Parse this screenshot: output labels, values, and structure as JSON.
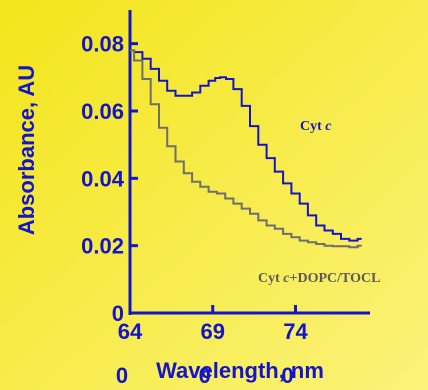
{
  "chart_data": {
    "type": "line",
    "ylabel": "Absorbance, AU",
    "xlabel": "Wavelength, nm",
    "xlim": [
      64,
      78.5
    ],
    "ylim": [
      0,
      0.09
    ],
    "y_ticks": [
      {
        "value": 0,
        "label": "0"
      },
      {
        "value": 0.02,
        "label": "0.02"
      },
      {
        "value": 0.04,
        "label": "0.04"
      },
      {
        "value": 0.06,
        "label": "0.06"
      },
      {
        "value": 0.08,
        "label": "0.08"
      }
    ],
    "x_ticks": [
      {
        "value": 64,
        "label": "64"
      },
      {
        "value": 69,
        "label": "69"
      },
      {
        "value": 74,
        "label": "74"
      }
    ],
    "x_subticks": [
      "0",
      "0",
      "0"
    ],
    "series": [
      {
        "name_main": "Cyt ",
        "name_italic": "c",
        "name_rest": "",
        "color": "#1414c8",
        "x": [
          64.0,
          64.5,
          65.0,
          65.5,
          66.0,
          66.5,
          67.0,
          67.5,
          68.0,
          68.5,
          69.0,
          69.3,
          69.6,
          70.0,
          70.5,
          71.0,
          71.5,
          72.0,
          72.5,
          73.0,
          73.5,
          74.0,
          74.5,
          75.0,
          75.5,
          76.0,
          76.5,
          77.0,
          77.5,
          78.0
        ],
        "y": [
          0.078,
          0.0775,
          0.0755,
          0.0725,
          0.069,
          0.066,
          0.0645,
          0.0645,
          0.0655,
          0.0675,
          0.069,
          0.0698,
          0.07,
          0.0695,
          0.0665,
          0.0615,
          0.0555,
          0.05,
          0.046,
          0.042,
          0.0385,
          0.0355,
          0.0325,
          0.029,
          0.026,
          0.0245,
          0.0235,
          0.022,
          0.0215,
          0.022
        ]
      },
      {
        "name_main": "Cyt ",
        "name_italic": "c",
        "name_rest": "+DOPC/TOCL",
        "color": "#6e6e6e",
        "x": [
          64.0,
          64.5,
          65.0,
          65.5,
          66.0,
          66.5,
          67.0,
          67.5,
          68.0,
          68.5,
          69.0,
          69.5,
          70.0,
          70.5,
          71.0,
          71.5,
          72.0,
          72.5,
          73.0,
          73.5,
          74.0,
          74.5,
          75.0,
          75.5,
          76.0,
          76.5,
          77.0,
          77.5,
          78.0
        ],
        "y": [
          0.078,
          0.075,
          0.0695,
          0.062,
          0.055,
          0.0495,
          0.045,
          0.0415,
          0.039,
          0.0375,
          0.036,
          0.0355,
          0.034,
          0.0325,
          0.031,
          0.0295,
          0.0275,
          0.026,
          0.025,
          0.0235,
          0.0225,
          0.0215,
          0.021,
          0.0205,
          0.02,
          0.0198,
          0.0198,
          0.0195,
          0.02
        ]
      }
    ]
  }
}
